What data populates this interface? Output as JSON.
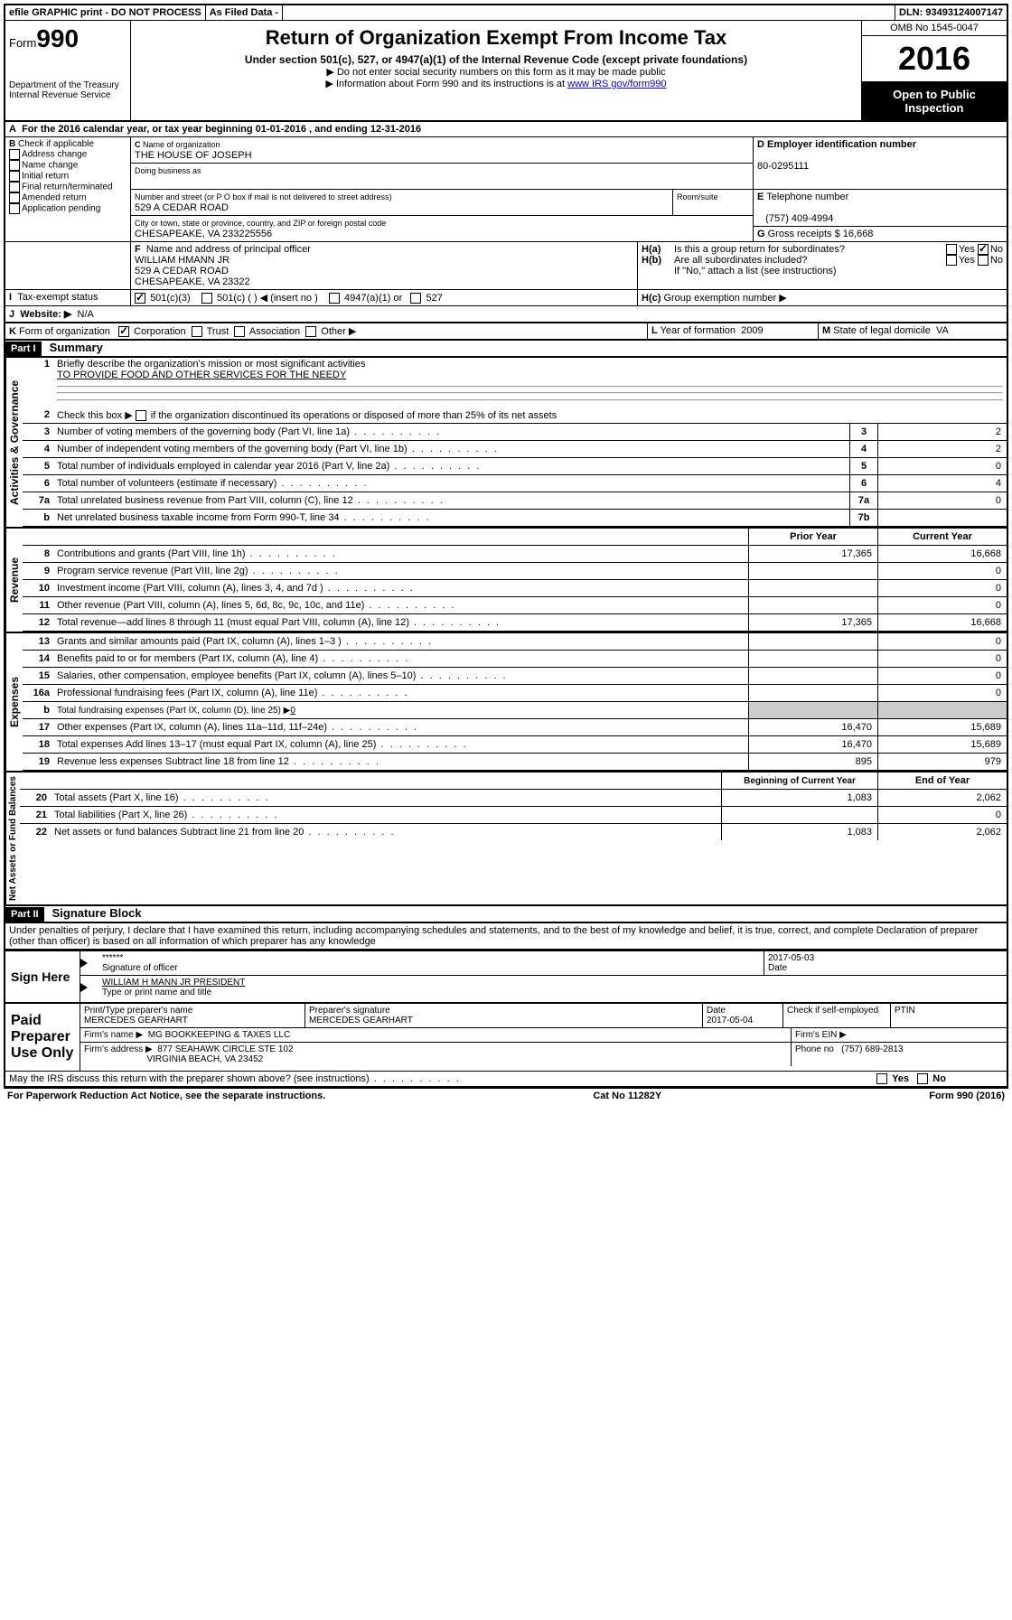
{
  "toprow": {
    "efile": "efile GRAPHIC print - DO NOT PROCESS",
    "asfiled": "As Filed Data -",
    "dln_label": "DLN:",
    "dln": "93493124007147"
  },
  "header": {
    "form_label": "Form",
    "form_num": "990",
    "dept": "Department of the Treasury",
    "irs": "Internal Revenue Service",
    "title": "Return of Organization Exempt From Income Tax",
    "subtitle": "Under section 501(c), 527, or 4947(a)(1) of the Internal Revenue Code (except private foundations)",
    "note1": "▶ Do not enter social security numbers on this form as it may be made public",
    "note2_pre": "▶ Information about Form 990 and its instructions is at ",
    "note2_link": "www IRS gov/form990",
    "omb": "OMB No 1545-0047",
    "year": "2016",
    "open": "Open to Public Inspection"
  },
  "A": "For the 2016 calendar year, or tax year beginning 01-01-2016  , and ending 12-31-2016",
  "B": {
    "label": "Check if applicable",
    "items": [
      "Address change",
      "Name change",
      "Initial return",
      "Final return/terminated",
      "Amended return",
      "Application pending"
    ]
  },
  "C": {
    "name_label": "Name of organization",
    "name": "THE HOUSE OF JOSEPH",
    "dba_label": "Doing business as",
    "street_label": "Number and street (or P O  box if mail is not delivered to street address)",
    "room_label": "Room/suite",
    "street": "529 A CEDAR ROAD",
    "city_label": "City or town, state or province, country, and ZIP or foreign postal code",
    "city": "CHESAPEAKE, VA  233225556"
  },
  "D": {
    "label": "Employer identification number",
    "val": "80-0295111"
  },
  "E": {
    "label": "Telephone number",
    "val": "(757) 409-4994"
  },
  "G": {
    "label": "Gross receipts $",
    "val": "16,668"
  },
  "F": {
    "label": "Name and address of principal officer",
    "name": "WILLIAM HMANN JR",
    "street": "529 A CEDAR ROAD",
    "city": "CHESAPEAKE, VA  23322"
  },
  "H": {
    "a": "Is this a group return for subordinates?",
    "b": "Are all subordinates included?",
    "b_note": "If \"No,\" attach a list  (see instructions)",
    "c": "Group exemption number ▶",
    "yes": "Yes",
    "no": "No"
  },
  "I": {
    "label": "Tax-exempt status",
    "o1": "501(c)(3)",
    "o2": "501(c) (  ) ◀ (insert no )",
    "o3": "4947(a)(1) or",
    "o4": "527"
  },
  "J": {
    "label": "Website: ▶",
    "val": "N/A"
  },
  "K": {
    "label": "Form of organization",
    "o1": "Corporation",
    "o2": "Trust",
    "o3": "Association",
    "o4": "Other ▶"
  },
  "L": {
    "label": "Year of formation",
    "val": "2009"
  },
  "M": {
    "label": "State of legal domicile",
    "val": "VA"
  },
  "part1": {
    "header": "Part I",
    "title": "Summary",
    "l1_label": "Briefly describe the organization's mission or most significant activities",
    "l1_val": "TO PROVIDE FOOD AND OTHER SERVICES FOR THE NEEDY",
    "l2": "Check this box ▶",
    "l2_text": "if the organization discontinued its operations or disposed of more than 25% of its net assets",
    "lines_ag": [
      {
        "n": "3",
        "t": "Number of voting members of the governing body (Part VI, line 1a)",
        "box": "3",
        "v": "2"
      },
      {
        "n": "4",
        "t": "Number of independent voting members of the governing body (Part VI, line 1b)",
        "box": "4",
        "v": "2"
      },
      {
        "n": "5",
        "t": "Total number of individuals employed in calendar year 2016 (Part V, line 2a)",
        "box": "5",
        "v": "0"
      },
      {
        "n": "6",
        "t": "Total number of volunteers (estimate if necessary)",
        "box": "6",
        "v": "4"
      },
      {
        "n": "7a",
        "t": "Total unrelated business revenue from Part VIII, column (C), line 12",
        "box": "7a",
        "v": "0"
      },
      {
        "n": "b",
        "t": "Net unrelated business taxable income from Form 990-T, line 34",
        "box": "7b",
        "v": ""
      }
    ],
    "prior": "Prior Year",
    "current": "Current Year",
    "rev": [
      {
        "n": "8",
        "t": "Contributions and grants (Part VIII, line 1h)",
        "p": "17,365",
        "c": "16,668"
      },
      {
        "n": "9",
        "t": "Program service revenue (Part VIII, line 2g)",
        "p": "",
        "c": "0"
      },
      {
        "n": "10",
        "t": "Investment income (Part VIII, column (A), lines 3, 4, and 7d )",
        "p": "",
        "c": "0"
      },
      {
        "n": "11",
        "t": "Other revenue (Part VIII, column (A), lines 5, 6d, 8c, 9c, 10c, and 11e)",
        "p": "",
        "c": "0"
      },
      {
        "n": "12",
        "t": "Total revenue—add lines 8 through 11 (must equal Part VIII, column (A), line 12)",
        "p": "17,365",
        "c": "16,668"
      }
    ],
    "exp": [
      {
        "n": "13",
        "t": "Grants and similar amounts paid (Part IX, column (A), lines 1–3 )",
        "p": "",
        "c": "0"
      },
      {
        "n": "14",
        "t": "Benefits paid to or for members (Part IX, column (A), line 4)",
        "p": "",
        "c": "0"
      },
      {
        "n": "15",
        "t": "Salaries, other compensation, employee benefits (Part IX, column (A), lines 5–10)",
        "p": "",
        "c": "0"
      },
      {
        "n": "16a",
        "t": "Professional fundraising fees (Part IX, column (A), line 11e)",
        "p": "",
        "c": "0"
      }
    ],
    "l16b_pre": "Total fundraising expenses (Part IX, column (D), line 25) ▶",
    "l16b_val": "0",
    "exp2": [
      {
        "n": "17",
        "t": "Other expenses (Part IX, column (A), lines 11a–11d, 11f–24e)",
        "p": "16,470",
        "c": "15,689"
      },
      {
        "n": "18",
        "t": "Total expenses  Add lines 13–17 (must equal Part IX, column (A), line 25)",
        "p": "16,470",
        "c": "15,689"
      },
      {
        "n": "19",
        "t": "Revenue less expenses  Subtract line 18 from line 12",
        "p": "895",
        "c": "979"
      }
    ],
    "boy": "Beginning of Current Year",
    "eoy": "End of Year",
    "net": [
      {
        "n": "20",
        "t": "Total assets (Part X, line 16)",
        "p": "1,083",
        "c": "2,062"
      },
      {
        "n": "21",
        "t": "Total liabilities (Part X, line 26)",
        "p": "",
        "c": "0"
      },
      {
        "n": "22",
        "t": "Net assets or fund balances  Subtract line 21 from line 20",
        "p": "1,083",
        "c": "2,062"
      }
    ],
    "vlabels": {
      "ag": "Activities & Governance",
      "rev": "Revenue",
      "exp": "Expenses",
      "net": "Net Assets or Fund Balances"
    }
  },
  "part2": {
    "header": "Part II",
    "title": "Signature Block",
    "decl": "Under penalties of perjury, I declare that I have examined this return, including accompanying schedules and statements, and to the best of my knowledge and belief, it is true, correct, and complete  Declaration of preparer (other than officer) is based on all information of which preparer has any knowledge",
    "sign_here": "Sign Here",
    "stars": "******",
    "sig_officer": "Signature of officer",
    "date": "Date",
    "sig_date": "2017-05-03",
    "officer_name": "WILLIAM H MANN JR  PRESIDENT",
    "type_name": "Type or print name and title",
    "paid": "Paid Preparer Use Only",
    "prep_name_label": "Print/Type preparer's name",
    "prep_name": "MERCEDES GEARHART",
    "prep_sig_label": "Preparer's signature",
    "prep_sig": "MERCEDES GEARHART",
    "prep_date_label": "Date",
    "prep_date": "2017-05-04",
    "check_self": "Check        if self-employed",
    "ptin": "PTIN",
    "firm_name_label": "Firm's name    ▶",
    "firm_name": "MG BOOKKEEPING & TAXES LLC",
    "firm_ein": "Firm's EIN ▶",
    "firm_addr_label": "Firm's address ▶",
    "firm_addr1": "877 SEAHAWK CIRCLE STE 102",
    "firm_addr2": "VIRGINIA BEACH, VA  23452",
    "phone_label": "Phone no",
    "phone": "(757) 689-2813",
    "discuss": "May the IRS discuss this return with the preparer shown above? (see instructions)",
    "yes": "Yes",
    "no": "No"
  },
  "footer": {
    "left": "For Paperwork Reduction Act Notice, see the separate instructions.",
    "mid": "Cat  No  11282Y",
    "right": "Form 990 (2016)"
  }
}
